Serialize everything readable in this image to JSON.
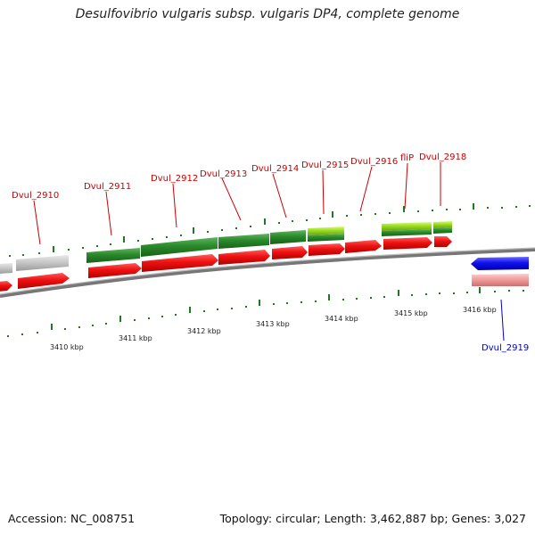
{
  "title": "Desulfovibrio vulgaris subsp. vulgaris DP4, complete genome",
  "footer": {
    "accession": "Accession: NC_008751",
    "summary": "Topology: circular; Length: 3,462,887 bp; Genes: 3,027"
  },
  "colors": {
    "red_arrow": "#ee1111",
    "dark_green": "#2a8a2a",
    "light_green": "#99dd22",
    "grey": "#c4c4c4",
    "blue": "#1111ee",
    "pink": "#ee9999",
    "backbone": "#888888",
    "tick": "#227722"
  },
  "gene_labels": [
    {
      "text": "Dvul_2910",
      "color": "red"
    },
    {
      "text": "Dvul_2911",
      "color": "red"
    },
    {
      "text": "Dvul_2912",
      "color": "red"
    },
    {
      "text": "Dvul_2913",
      "color": "red"
    },
    {
      "text": "Dvul_2914",
      "color": "red"
    },
    {
      "text": "Dvul_2915",
      "color": "red"
    },
    {
      "text": "Dvul_2916",
      "color": "red"
    },
    {
      "text": "fliP",
      "color": "red"
    },
    {
      "text": "Dvul_2918",
      "color": "red"
    },
    {
      "text": "Dvul_2919",
      "color": "blue"
    }
  ],
  "kbp_labels": [
    "3410 kbp",
    "3411 kbp",
    "3412 kbp",
    "3413 kbp",
    "3414 kbp",
    "3415 kbp",
    "3416 kbp"
  ]
}
